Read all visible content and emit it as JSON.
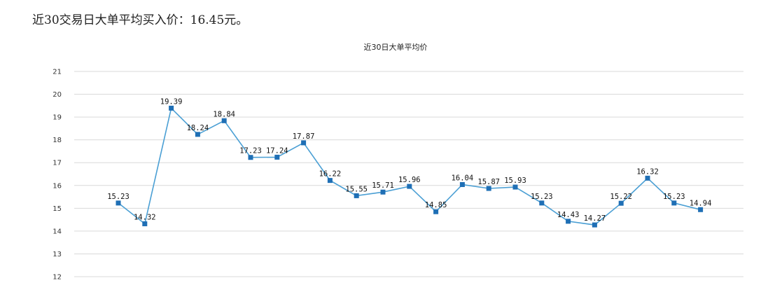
{
  "summary_text": "近30交易日大单平均买入价：16.45元。",
  "colors": {
    "line": "#4a9fd4",
    "marker": "#1f6fb5",
    "grid": "#d9d9d9"
  },
  "chart_data": {
    "type": "line",
    "title": "近30日大单平均价",
    "xlabel": "",
    "ylabel": "",
    "ylim": [
      12,
      21
    ],
    "yticks": [
      21,
      20,
      19,
      18,
      17,
      16,
      15,
      14,
      13,
      12
    ],
    "grid": true,
    "legend": "none",
    "series": [
      {
        "values": [
          15.23,
          14.32,
          19.39,
          18.24,
          18.84,
          17.23,
          17.24,
          17.87,
          16.22,
          15.55,
          15.71,
          15.96,
          14.85,
          16.04,
          15.87,
          15.93,
          15.23,
          14.43,
          14.27,
          15.22,
          16.32,
          15.23,
          14.94
        ],
        "labels": [
          "15.23",
          "14.32",
          "19.39",
          "18.24",
          "18.84",
          "17.23",
          "17.24",
          "17.87",
          "16.22",
          "15.55",
          "15.71",
          "15.96",
          "14.85",
          "16.04",
          "15.87",
          "15.93",
          "15.23",
          "14.43",
          "14.27",
          "15.22",
          "16.32",
          "15.23",
          "14.94"
        ]
      }
    ]
  }
}
